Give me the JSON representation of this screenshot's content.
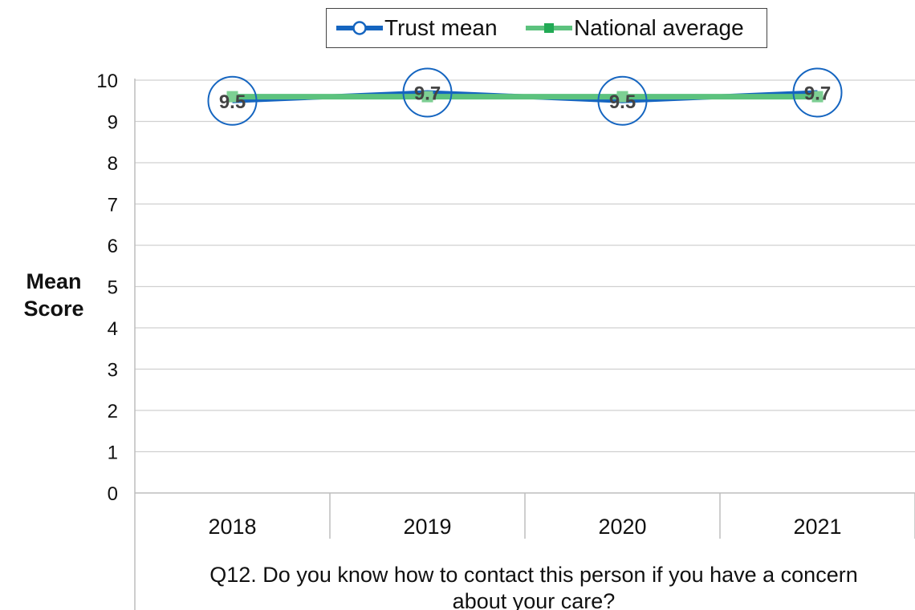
{
  "chart_data": {
    "type": "line",
    "categories": [
      "2018",
      "2019",
      "2020",
      "2021"
    ],
    "series": [
      {
        "name": "Trust mean",
        "values": [
          9.5,
          9.7,
          9.5,
          9.7
        ],
        "color": "#1565c0",
        "marker": "circle",
        "data_labels": [
          "9.5",
          "9.7",
          "9.5",
          "9.7"
        ]
      },
      {
        "name": "National average",
        "values": [
          9.6,
          9.6,
          9.6,
          9.6
        ],
        "color": "#5cc27e",
        "marker": "square"
      }
    ],
    "ylabel": "Mean Score",
    "xlabel": "Q12. Do you know how to contact this person if you have a concern about your care?",
    "xlabel_lines": [
      "Q12. Do you know how to contact this person if you have a concern",
      "about your care?"
    ],
    "ylim": [
      0,
      10
    ],
    "yticks": [
      "0",
      "1",
      "2",
      "3",
      "4",
      "5",
      "6",
      "7",
      "8",
      "9",
      "10"
    ],
    "grid": true,
    "legend_position": "top"
  }
}
